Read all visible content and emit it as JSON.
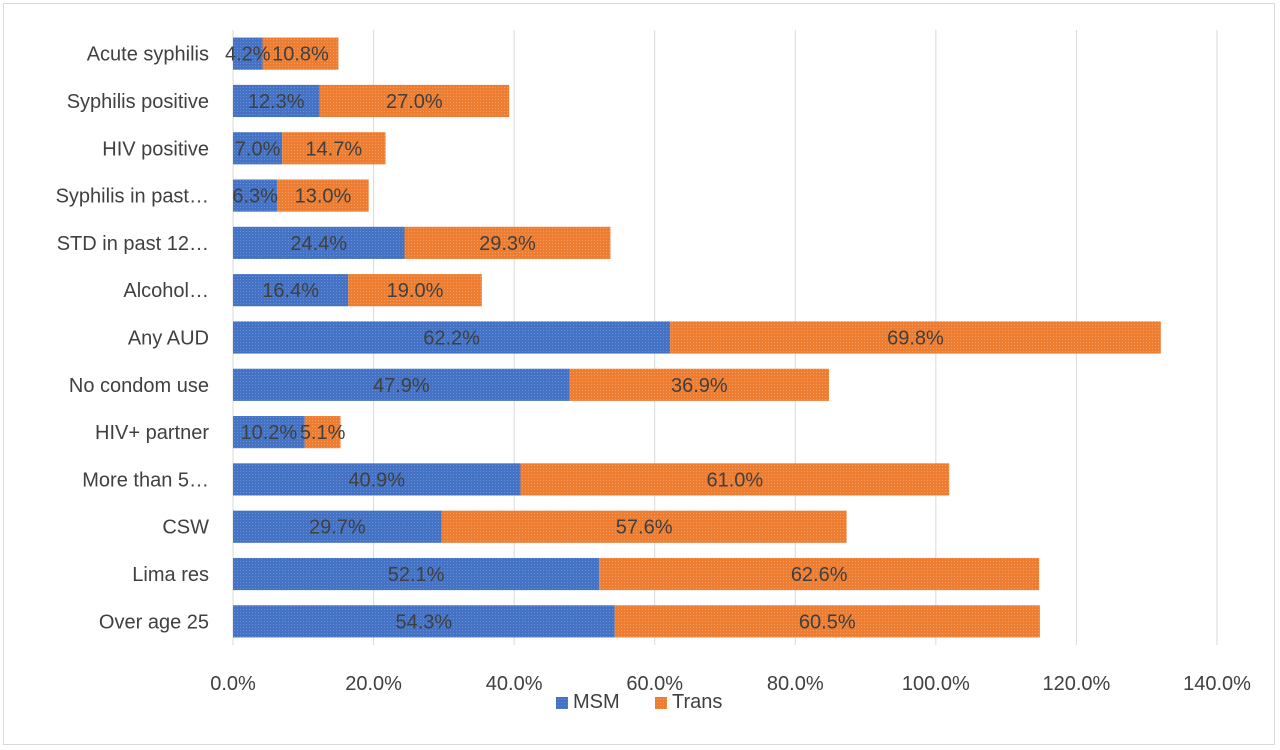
{
  "chart_data": {
    "type": "bar",
    "orientation": "horizontal",
    "stacked": true,
    "categories": [
      "Acute syphilis",
      "Syphilis positive",
      "HIV positive",
      "Syphilis in past…",
      "STD in past 12…",
      "Alcohol…",
      "Any AUD",
      "No condom use",
      "HIV+ partner",
      "More than 5…",
      "CSW",
      "Lima res",
      "Over age 25"
    ],
    "series": [
      {
        "name": "MSM",
        "color": "#4472c4",
        "values": [
          4.2,
          12.3,
          7.0,
          6.3,
          24.4,
          16.4,
          62.2,
          47.9,
          10.2,
          40.9,
          29.7,
          52.1,
          54.3
        ],
        "labels": [
          "4.2%",
          "12.3%",
          "7.0%",
          "6.3%",
          "24.4%",
          "16.4%",
          "62.2%",
          "47.9%",
          "10.2%",
          "40.9%",
          "29.7%",
          "52.1%",
          "54.3%"
        ]
      },
      {
        "name": "Trans",
        "color": "#ed7d31",
        "values": [
          10.8,
          27.0,
          14.7,
          13.0,
          29.3,
          19.0,
          69.8,
          36.9,
          5.1,
          61.0,
          57.6,
          62.6,
          60.5
        ],
        "labels": [
          "10.8%",
          "27.0%",
          "14.7%",
          "13.0%",
          "29.3%",
          "19.0%",
          "69.8%",
          "36.9%",
          "5.1%",
          "61.0%",
          "57.6%",
          "62.6%",
          "60.5%"
        ]
      }
    ],
    "x_ticks": [
      "0.0%",
      "20.0%",
      "40.0%",
      "60.0%",
      "80.0%",
      "100.0%",
      "120.0%",
      "140.0%"
    ],
    "xlim": [
      0,
      140
    ],
    "grid": true,
    "legend": "bottom",
    "title": "",
    "xlabel": "",
    "ylabel": ""
  }
}
